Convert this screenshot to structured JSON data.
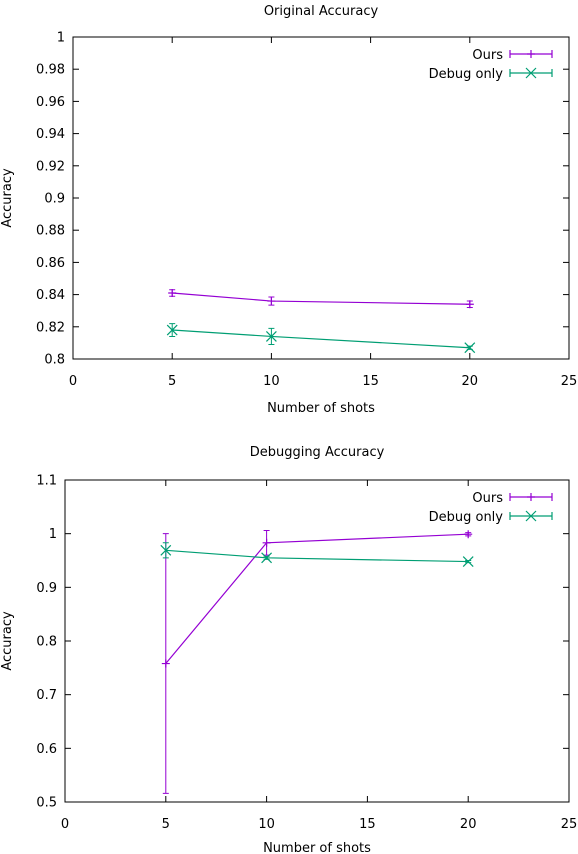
{
  "colors": {
    "ours": "#9400d3",
    "debug": "#009e73",
    "axis": "#000000"
  },
  "chart_data": [
    {
      "type": "line",
      "title": "Original Accuracy",
      "xlabel": "Number of shots",
      "ylabel": "Accuracy",
      "xlim": [
        0,
        25
      ],
      "ylim": [
        0.8,
        1
      ],
      "xticks": [
        0,
        5,
        10,
        15,
        20,
        25
      ],
      "yticks": [
        0.8,
        0.82,
        0.84,
        0.86,
        0.88,
        0.9,
        0.92,
        0.94,
        0.96,
        0.98,
        1
      ],
      "ytick_labels": [
        "0.8",
        "0.82",
        "0.84",
        "0.86",
        "0.88",
        "0.9",
        "0.92",
        "0.94",
        "0.96",
        "0.98",
        "1"
      ],
      "legend_position": "top-right",
      "series": [
        {
          "name": "Ours",
          "marker": "plus",
          "x": [
            5,
            10,
            20
          ],
          "y": [
            0.841,
            0.836,
            0.834
          ],
          "err": [
            0.002,
            0.0025,
            0.002
          ]
        },
        {
          "name": "Debug only",
          "marker": "x",
          "x": [
            5,
            10,
            20
          ],
          "y": [
            0.818,
            0.814,
            0.807
          ],
          "err": [
            0.004,
            0.005,
            0.001
          ]
        }
      ]
    },
    {
      "type": "line",
      "title": "Debugging Accuracy",
      "xlabel": "Number of shots",
      "ylabel": "Accuracy",
      "xlim": [
        0,
        25
      ],
      "ylim": [
        0.5,
        1.1
      ],
      "xticks": [
        0,
        5,
        10,
        15,
        20,
        25
      ],
      "yticks": [
        0.5,
        0.6,
        0.7,
        0.8,
        0.9,
        1.0,
        1.1
      ],
      "ytick_labels": [
        "0.5",
        "0.6",
        "0.7",
        "0.8",
        "0.9",
        "1",
        "1.1"
      ],
      "legend_position": "top-right",
      "series": [
        {
          "name": "Ours",
          "marker": "plus",
          "x": [
            5,
            10,
            20
          ],
          "y": [
            0.758,
            0.983,
            0.999
          ],
          "err": [
            0.242,
            0.023,
            0.003
          ]
        },
        {
          "name": "Debug only",
          "marker": "x",
          "x": [
            5,
            10,
            20
          ],
          "y": [
            0.969,
            0.955,
            0.948
          ],
          "err": [
            0.014,
            0.003,
            0.002
          ]
        }
      ]
    }
  ]
}
